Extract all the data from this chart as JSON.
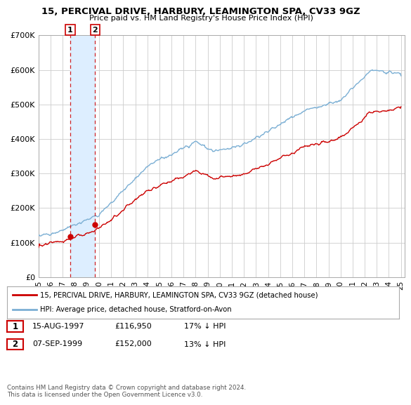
{
  "title": "15, PERCIVAL DRIVE, HARBURY, LEAMINGTON SPA, CV33 9GZ",
  "subtitle": "Price paid vs. HM Land Registry's House Price Index (HPI)",
  "ylim": [
    0,
    700000
  ],
  "yticks": [
    0,
    100000,
    200000,
    300000,
    400000,
    500000,
    600000,
    700000
  ],
  "ytick_labels": [
    "£0",
    "£100K",
    "£200K",
    "£300K",
    "£400K",
    "£500K",
    "£600K",
    "£700K"
  ],
  "sale1_date": 1997.62,
  "sale1_price": 116950,
  "sale1_label": "1",
  "sale2_date": 1999.68,
  "sale2_price": 152000,
  "sale2_label": "2",
  "hpi_color": "#7bafd4",
  "price_color": "#cc0000",
  "shade_color": "#ddeeff",
  "legend_label1": "15, PERCIVAL DRIVE, HARBURY, LEAMINGTON SPA, CV33 9GZ (detached house)",
  "legend_label2": "HPI: Average price, detached house, Stratford-on-Avon",
  "table_row1": [
    "1",
    "15-AUG-1997",
    "£116,950",
    "17% ↓ HPI"
  ],
  "table_row2": [
    "2",
    "07-SEP-1999",
    "£152,000",
    "13% ↓ HPI"
  ],
  "footnote": "Contains HM Land Registry data © Crown copyright and database right 2024.\nThis data is licensed under the Open Government Licence v3.0.",
  "background_color": "#ffffff",
  "grid_color": "#cccccc",
  "xlim_left": 1995.0,
  "xlim_right": 2025.3
}
